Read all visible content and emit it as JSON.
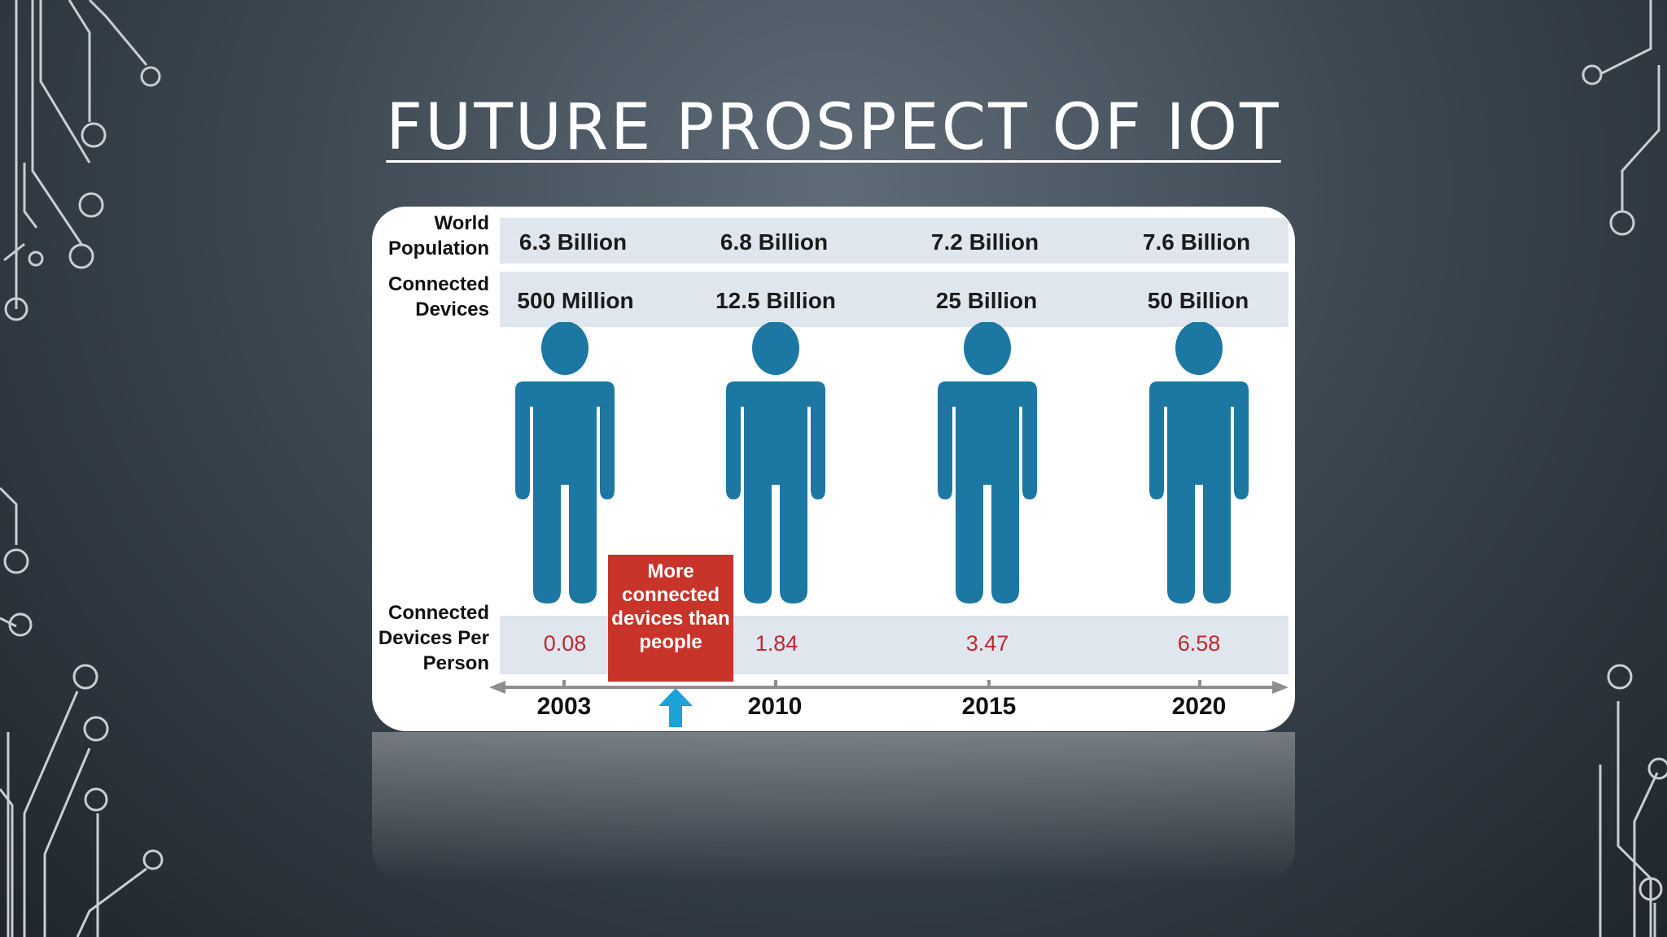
{
  "slide": {
    "title": "FUTURE PROSPECT OF IOT"
  },
  "infographic": {
    "row_labels": {
      "world_population": "World Population",
      "connected_devices": "Connected Devices",
      "devices_per_person": "Connected Devices Per Person"
    },
    "columns": [
      {
        "year": "2003",
        "world_population": "6.3 Billion",
        "connected_devices": "500 Million",
        "devices_per_person": "0.08"
      },
      {
        "year": "2010",
        "world_population": "6.8 Billion",
        "connected_devices": "12.5 Billion",
        "devices_per_person": "1.84"
      },
      {
        "year": "2015",
        "world_population": "7.2 Billion",
        "connected_devices": "25 Billion",
        "devices_per_person": "3.47"
      },
      {
        "year": "2020",
        "world_population": "7.6 Billion",
        "connected_devices": "50 Billion",
        "devices_per_person": "6.58"
      }
    ],
    "callout": "More connected devices than people",
    "colors": {
      "person": "#1c77a3",
      "callout": "#c8342a",
      "ratio_text": "#c0282d",
      "arrow": "#1aa3d9",
      "band": "#dfe6ee"
    }
  }
}
